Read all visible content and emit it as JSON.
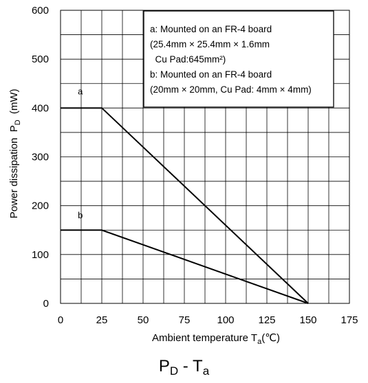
{
  "chart_data": {
    "type": "line",
    "title": "",
    "xlabel": {
      "main": "Ambient temperature  T",
      "sub": "a",
      "unit": "(℃)"
    },
    "ylabel": {
      "main": "Power dissipation  P",
      "sub": "D",
      "unit": "  (mW)"
    },
    "xlim": [
      0,
      175
    ],
    "ylim": [
      0,
      600
    ],
    "x_ticks": [
      "0",
      "25",
      "50",
      "75",
      "100",
      "125",
      "150",
      "175"
    ],
    "y_ticks": [
      "0",
      "100",
      "200",
      "300",
      "400",
      "500",
      "600"
    ],
    "x_tick_values": [
      0,
      25,
      50,
      75,
      100,
      125,
      150,
      175
    ],
    "y_tick_values": [
      0,
      100,
      200,
      300,
      400,
      500,
      600
    ],
    "x_minor_grid_step": 12.5,
    "y_minor_grid_step": 50,
    "grid": true,
    "series": [
      {
        "name": "a",
        "x": [
          0,
          25,
          150
        ],
        "y": [
          400,
          400,
          0
        ]
      },
      {
        "name": "b",
        "x": [
          0,
          25,
          150
        ],
        "y": [
          150,
          150,
          0
        ]
      }
    ],
    "series_labels": [
      {
        "text": "a",
        "x": 12,
        "y": 428
      },
      {
        "text": "b",
        "x": 12,
        "y": 174
      }
    ],
    "annotation": {
      "lines": [
        "a: Mounted on an FR-4 board",
        "(25.4mm × 25.4mm × 1.6mm",
        "  Cu Pad:645mm²)",
        "b: Mounted on an FR-4 board",
        "(20mm × 20mm, Cu Pad: 4mm × 4mm)"
      ]
    }
  },
  "caption": {
    "p": "P",
    "p_sub": "D",
    "sep": " - ",
    "t": "T",
    "t_sub": "a"
  }
}
